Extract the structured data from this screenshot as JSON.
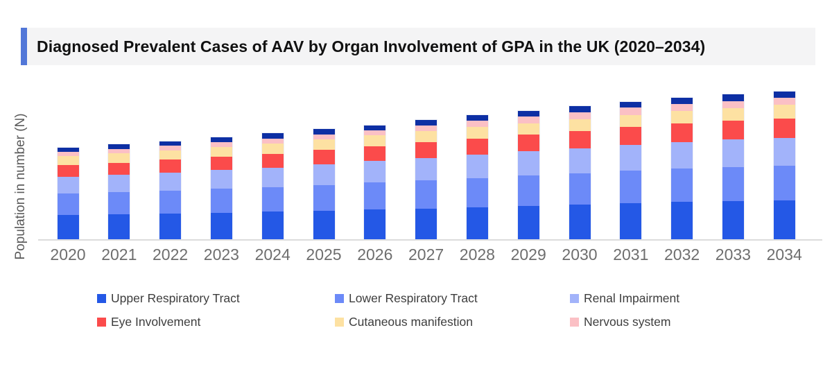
{
  "title": "Diagnosed Prevalent Cases of AAV by Organ Involvement of GPA in the UK (2020–2034)",
  "accent_color": "#5277d8",
  "axis": {
    "y_label": "Population in number (N)",
    "y_tick_labels": "none shown",
    "axis_line_color": "#dcdcdc"
  },
  "chart_data": {
    "type": "bar",
    "stacked": true,
    "title": "Diagnosed Prevalent Cases of AAV by Organ Involvement of GPA in the UK (2020–2034)",
    "xlabel": "",
    "ylabel": "Population in number (N)",
    "legend_position": "bottom",
    "grid": false,
    "value_note": "y-axis has no tick labels; values are relative estimates measured in pixels",
    "categories": [
      "2020",
      "2021",
      "2022",
      "2023",
      "2024",
      "2025",
      "2026",
      "2027",
      "2028",
      "2029",
      "2030",
      "2031",
      "2032",
      "2033",
      "2034"
    ],
    "series": [
      {
        "name": "Upper Respiratory Tract",
        "color": "#2458e6",
        "values": [
          35,
          36,
          37,
          38.5,
          40,
          41.5,
          43,
          44.5,
          46,
          48,
          50,
          52,
          54,
          55,
          56
        ]
      },
      {
        "name": "Lower Respiratory Tract",
        "color": "#6c8af8",
        "values": [
          31,
          32,
          33,
          34.5,
          35.5,
          37,
          39,
          41,
          42.5,
          44,
          45.5,
          47,
          48.5,
          49.5,
          50.5
        ]
      },
      {
        "name": "Renal Impairment",
        "color": "#a2b3fa",
        "values": [
          24,
          25,
          26,
          27,
          28,
          29.5,
          31,
          32,
          33.5,
          35,
          36,
          37,
          38,
          39.5,
          40
        ]
      },
      {
        "name": "Eye Involvement",
        "color": "#fb4b4b",
        "values": [
          17.5,
          17.5,
          19,
          19.5,
          20,
          21,
          21.5,
          22.5,
          23.5,
          24,
          25,
          26,
          26.5,
          27,
          28
        ]
      },
      {
        "name": "Cutaneous manifestion",
        "color": "#fde1a2",
        "values": [
          13,
          14,
          13.5,
          14,
          14.5,
          15,
          16,
          16.5,
          17,
          16.5,
          17,
          17.5,
          18,
          18.5,
          19.5
        ]
      },
      {
        "name": "Nervous system",
        "color": "#fbc0c5",
        "values": [
          6,
          6,
          6.5,
          6.5,
          7.5,
          7.5,
          7,
          7.5,
          8.5,
          10,
          10,
          10.5,
          10.5,
          10,
          10
        ]
      },
      {
        "name": "Unlabeled top segment (dark navy, no legend entry)",
        "color": "#0d2fa4",
        "in_legend": false,
        "values": [
          6,
          6.5,
          6.5,
          7,
          7.5,
          7.5,
          6.5,
          8,
          8.5,
          8,
          8.5,
          8.5,
          8.5,
          9.5,
          9.5
        ]
      }
    ]
  }
}
